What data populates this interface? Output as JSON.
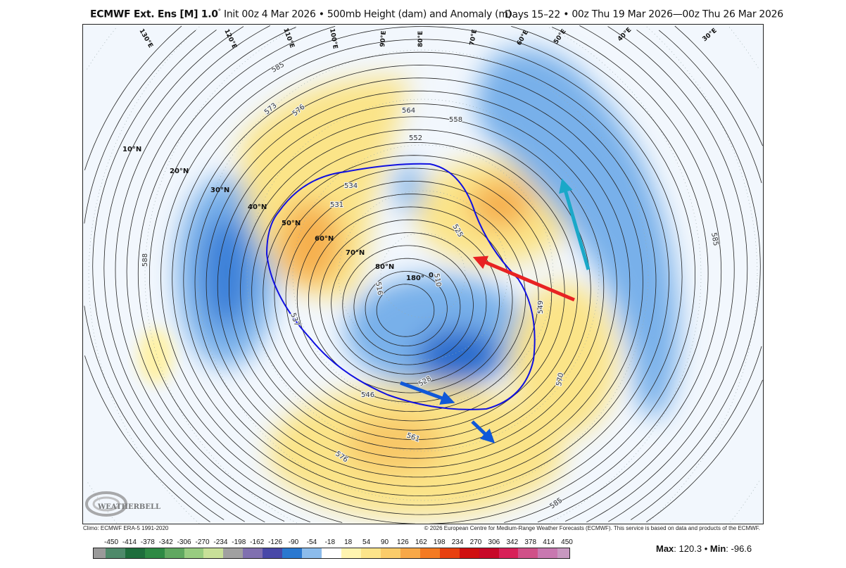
{
  "header": {
    "model": "ECMWF Ext. Ens [M] 1.0",
    "degree": "°",
    "init": "Init 00z 4 Mar 2026",
    "field": "500mb Height (dam) and Anomaly (m)",
    "period": "Days 15–22",
    "valid": "00z Thu 19 Mar 2026—00z Thu 26 Mar 2026",
    "bullet": "•"
  },
  "map": {
    "longitude_labels": [
      "130°E",
      "120°E",
      "110°E",
      "100°E",
      "90°E",
      "80°E",
      "70°E",
      "60°E",
      "50°E",
      "40°E",
      "30°E"
    ],
    "latitude_labels": [
      "10°N",
      "20°N",
      "30°N",
      "40°N",
      "50°N",
      "60°N",
      "70°N",
      "80°N"
    ],
    "meridian_labels": [
      "180°",
      "0"
    ],
    "contour_labels": [
      "564",
      "558",
      "552",
      "534",
      "531",
      "516",
      "510",
      "525",
      "549",
      "570",
      "576",
      "561",
      "546",
      "528",
      "537",
      "588",
      "585",
      "585",
      "585",
      "573",
      "576"
    ],
    "colors": {
      "positive": "#fbe27a",
      "strong_positive": "#f5a640",
      "negative": "#6ea8e6",
      "strong_negative": "#2a72d0",
      "contour_540": "#1010e0",
      "arrow_red": "#e82222",
      "arrow_cyan": "#1aa8c8",
      "arrow_blue": "#1058d8"
    },
    "logo": "WeatherBELL Analytics LLC"
  },
  "footer": {
    "climo": "Climo: ECMWF ERA-5 1991-2020",
    "copyright": "© 2026 European Centre for Medium-Range Weather Forecasts (ECMWF). This service is based on data and products of the ECMWF."
  },
  "colorbar": {
    "ticks": [
      "-450",
      "-414",
      "-378",
      "-342",
      "-306",
      "-270",
      "-234",
      "-198",
      "-162",
      "-126",
      "-90",
      "-54",
      "-18",
      "18",
      "54",
      "90",
      "126",
      "162",
      "198",
      "234",
      "270",
      "306",
      "342",
      "378",
      "414",
      "450"
    ],
    "colors": [
      "#9a9a9a",
      "#4e8a6a",
      "#1e6e3c",
      "#2e8a44",
      "#60a860",
      "#98cc80",
      "#c8e098",
      "#a0a0a0",
      "#8070b0",
      "#4848a8",
      "#2a78d0",
      "#8cbcec",
      "#ffffff",
      "#fff4b0",
      "#fde48a",
      "#fbcc6a",
      "#f8a848",
      "#f47a22",
      "#e84010",
      "#d01010",
      "#c80828",
      "#d82058",
      "#d05088",
      "#c878b0",
      "#c898c0"
    ]
  },
  "stats": {
    "max_label": "Max",
    "max": "120.3",
    "min_label": "Min",
    "min": "-96.6",
    "sep": "•"
  }
}
